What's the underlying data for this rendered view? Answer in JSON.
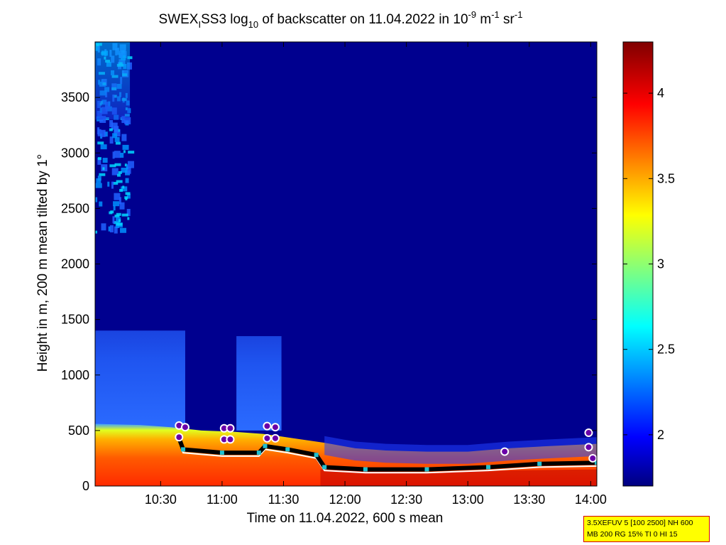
{
  "chart_data": [
    {
      "type": "heatmap",
      "title": {
        "prefix": "SWEX",
        "prefix_sub": "I",
        "mid": "SS3 log",
        "log_sub": "10",
        "text": " of backscatter on 11.04.2022 in 10",
        "exp1": "-9",
        "unit_m": " m",
        "exp2": "-1",
        "unit_sr": " sr",
        "exp3": "-1"
      },
      "xlabel": "Time on 11.04.2022, 600 s mean",
      "ylabel": "Height in m, 200 m mean tilted by 1°",
      "x_range_minutes": [
        598,
        843
      ],
      "xticks": [
        {
          "label": "10:30",
          "minute": 630
        },
        {
          "label": "11:00",
          "minute": 660
        },
        {
          "label": "11:30",
          "minute": 690
        },
        {
          "label": "12:00",
          "minute": 720
        },
        {
          "label": "12:30",
          "minute": 750
        },
        {
          "label": "13:00",
          "minute": 780
        },
        {
          "label": "13:30",
          "minute": 810
        },
        {
          "label": "14:00",
          "minute": 840
        }
      ],
      "ylim": [
        0,
        4000
      ],
      "yticks": [
        0,
        500,
        1000,
        1500,
        2000,
        2500,
        3000,
        3500
      ],
      "colorbar": {
        "range": [
          1.7,
          4.3
        ],
        "ticks": [
          "2",
          "2.5",
          "3",
          "3.5",
          "4"
        ],
        "tick_values": [
          2,
          2.5,
          3,
          3.5,
          4
        ],
        "colormap": "jet"
      },
      "aerosol_layer_top_m": [
        {
          "minute": 598,
          "height": 560
        },
        {
          "minute": 620,
          "height": 550
        },
        {
          "minute": 635,
          "height": 530
        },
        {
          "minute": 650,
          "height": 500
        },
        {
          "minute": 665,
          "height": 490
        },
        {
          "minute": 680,
          "height": 470
        },
        {
          "minute": 695,
          "height": 430
        },
        {
          "minute": 710,
          "height": 390
        },
        {
          "minute": 725,
          "height": 340
        },
        {
          "minute": 740,
          "height": 320
        },
        {
          "minute": 760,
          "height": 310
        },
        {
          "minute": 780,
          "height": 310
        },
        {
          "minute": 800,
          "height": 340
        },
        {
          "minute": 820,
          "height": 360
        },
        {
          "minute": 843,
          "height": 380
        }
      ],
      "upper_plumes": [
        {
          "minute_start": 598,
          "minute_end": 642,
          "top_m": 1400
        },
        {
          "minute_start": 667,
          "minute_end": 689,
          "top_m": 1350
        }
      ],
      "layer_height_black_m": [
        {
          "minute": 639,
          "height": 430
        },
        {
          "minute": 641,
          "height": 330
        },
        {
          "minute": 660,
          "height": 300
        },
        {
          "minute": 678,
          "height": 300
        },
        {
          "minute": 681,
          "height": 360
        },
        {
          "minute": 692,
          "height": 330
        },
        {
          "minute": 706,
          "height": 280
        },
        {
          "minute": 710,
          "height": 170
        },
        {
          "minute": 730,
          "height": 150
        },
        {
          "minute": 760,
          "height": 150
        },
        {
          "minute": 790,
          "height": 170
        },
        {
          "minute": 815,
          "height": 200
        },
        {
          "minute": 843,
          "height": 210
        }
      ],
      "cloud_markers": [
        {
          "minute": 639,
          "height": 545
        },
        {
          "minute": 642,
          "height": 530
        },
        {
          "minute": 639,
          "height": 440
        },
        {
          "minute": 661,
          "height": 520
        },
        {
          "minute": 664,
          "height": 520
        },
        {
          "minute": 661,
          "height": 420
        },
        {
          "minute": 664,
          "height": 420
        },
        {
          "minute": 682,
          "height": 540
        },
        {
          "minute": 686,
          "height": 530
        },
        {
          "minute": 682,
          "height": 430
        },
        {
          "minute": 686,
          "height": 430
        },
        {
          "minute": 798,
          "height": 310
        },
        {
          "minute": 839,
          "height": 480
        },
        {
          "minute": 839,
          "height": 350
        },
        {
          "minute": 841,
          "height": 250
        }
      ],
      "info_box": [
        "3.5XEFUV 5 [100 2500] NH 600",
        "MB 200 RG 15% TI 0 HI 15"
      ]
    }
  ]
}
